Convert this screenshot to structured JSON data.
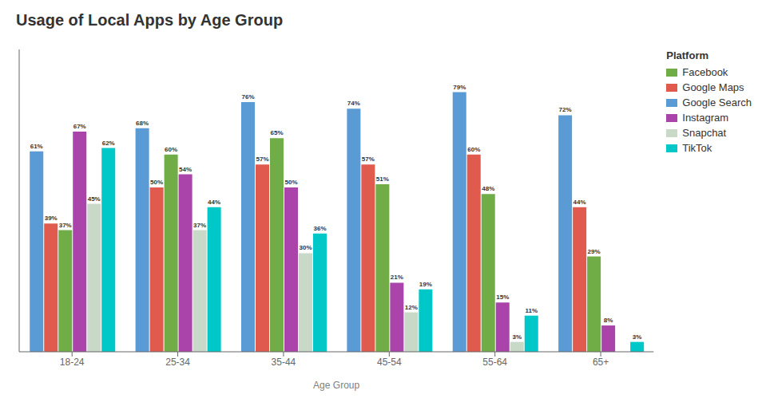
{
  "chart_data": {
    "type": "bar",
    "title": "Usage of Local Apps by Age Group",
    "xlabel": "Age Group",
    "legend_title": "Platform",
    "categories": [
      "18-24",
      "25-34",
      "35-44",
      "45-54",
      "55-64",
      "65+"
    ],
    "series": [
      {
        "name": "Google Search",
        "color": "#5b9bd5",
        "values": [
          61,
          68,
          76,
          74,
          79,
          72
        ],
        "value_labels": [
          "61%",
          "68%",
          "76%",
          "74%",
          "79%",
          "72%"
        ]
      },
      {
        "name": "Google Maps",
        "color": "#e05a4e",
        "values": [
          39,
          50,
          57,
          57,
          60,
          44
        ],
        "value_labels": [
          "39%",
          "50%",
          "57%",
          "57%",
          "60%",
          "44%"
        ]
      },
      {
        "name": "Facebook",
        "color": "#70ad47",
        "values": [
          37,
          60,
          65,
          51,
          48,
          29
        ],
        "value_labels": [
          "37%",
          "60%",
          "65%",
          "51%",
          "48%",
          "29%"
        ]
      },
      {
        "name": "Instagram",
        "color": "#aa44aa",
        "values": [
          67,
          54,
          50,
          21,
          15,
          8
        ],
        "value_labels": [
          "67%",
          "54%",
          "50%",
          "21%",
          "15%",
          "8%"
        ]
      },
      {
        "name": "Snapchat",
        "color": "#c8d9c8",
        "values": [
          45,
          37,
          30,
          12,
          3,
          0
        ],
        "value_labels": [
          "45%",
          "37%",
          "30%",
          "12%",
          "3%",
          null
        ]
      },
      {
        "name": "TikTok",
        "color": "#00c8c8",
        "values": [
          62,
          44,
          36,
          19,
          11,
          3
        ],
        "value_labels": [
          "62%",
          "44%",
          "36%",
          "19%",
          "11%",
          "3%"
        ]
      }
    ],
    "ylim": [
      0,
      92
    ],
    "grid": false,
    "legend": "right",
    "data_labels": true,
    "tick_labels": "x"
  }
}
